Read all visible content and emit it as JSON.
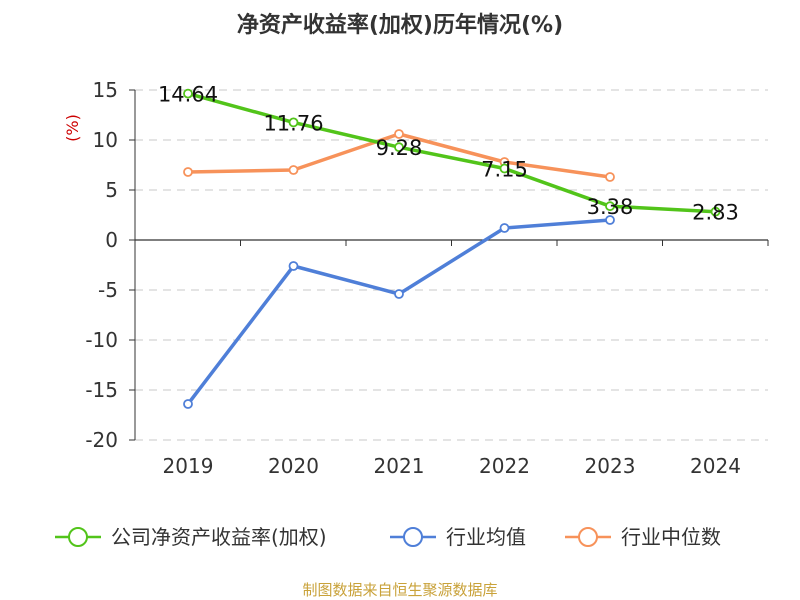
{
  "chart_data": {
    "type": "line",
    "title": "净资产收益率(加权)历年情况(%)",
    "ylabel": "(%)",
    "xlabel": "",
    "categories": [
      "2019",
      "2020",
      "2021",
      "2022",
      "2023",
      "2024"
    ],
    "ylim": [
      -20,
      15
    ],
    "yticks": [
      15,
      10,
      5,
      0,
      -5,
      -10,
      -15,
      -20
    ],
    "grid": true,
    "legend_position": "bottom",
    "series": [
      {
        "name": "公司净资产收益率(加权)",
        "color": "#52c41a",
        "values": [
          14.64,
          11.76,
          9.28,
          7.15,
          3.38,
          2.83
        ],
        "labels": [
          "14.64",
          "11.76",
          "9.28",
          "7.15",
          "3.38",
          "2.83"
        ]
      },
      {
        "name": "行业均值",
        "color": "#4f7fd8",
        "values": [
          -16.4,
          -2.6,
          -5.4,
          1.2,
          2.0,
          null
        ]
      },
      {
        "name": "行业中位数",
        "color": "#f7925a",
        "values": [
          6.8,
          7.0,
          10.6,
          7.8,
          6.3,
          null
        ]
      }
    ],
    "source": "制图数据来自恒生聚源数据库"
  }
}
